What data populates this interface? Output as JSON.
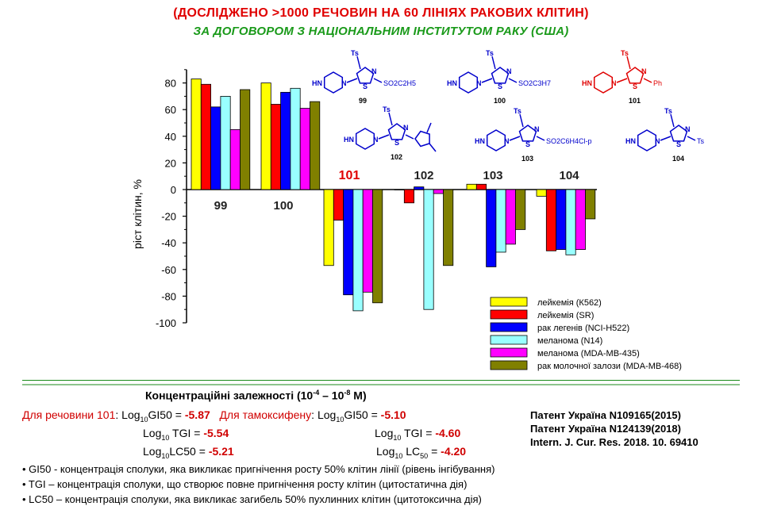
{
  "header": {
    "line1": "(ДОСЛІДЖЕНО  >1000  РЕЧОВИН  НА  60  ЛІНІЯХ  РАКОВИХ  КЛІТИН)",
    "line2": "ЗА ДОГОВОРОМ  З НАЦІОНАЛЬНИМ  ІНСТИТУТОМ РАКУ (США)"
  },
  "chart_data": {
    "type": "bar",
    "ylabel": "ріст клітин, %",
    "ylim": [
      -100,
      90
    ],
    "yticks": [
      80,
      60,
      40,
      20,
      0,
      -20,
      -40,
      -60,
      -80,
      -100
    ],
    "categories": [
      "99",
      "100",
      "101",
      "102",
      "103",
      "104"
    ],
    "highlight_category": "101",
    "series": [
      {
        "name": "лейкемія (К562)",
        "color": "#ffff00",
        "values": [
          83,
          80,
          -57,
          0,
          4,
          -5
        ]
      },
      {
        "name": "лейкемія (SR)",
        "color": "#ff0000",
        "values": [
          79,
          64,
          -23,
          -10,
          4,
          -46
        ]
      },
      {
        "name": "рак легенів (NCI-H522)",
        "color": "#0000ff",
        "values": [
          62,
          73,
          -79,
          2,
          -58,
          -45
        ]
      },
      {
        "name": "меланома (N14)",
        "color": "#99ffff",
        "values": [
          70,
          76,
          -91,
          -90,
          -47,
          -49
        ]
      },
      {
        "name": "меланома (MDA-MB-435)",
        "color": "#ff00ff",
        "values": [
          45,
          61,
          -77,
          -3,
          -41,
          -45
        ]
      },
      {
        "name": "рак молочної залози (MDA-MB-468)",
        "color": "#808000",
        "values": [
          75,
          66,
          -85,
          -57,
          -30,
          -22
        ]
      }
    ]
  },
  "molecules": [
    {
      "num": "99",
      "sub": "SO2C2H5"
    },
    {
      "num": "100",
      "sub": "SO2C3H7"
    },
    {
      "num": "101",
      "sub": "Ph"
    },
    {
      "num": "102",
      "sub": ""
    },
    {
      "num": "103",
      "sub": "SO2C6H4Cl-p"
    },
    {
      "num": "104",
      "sub": "Ts"
    }
  ],
  "mol_labels": {
    "ts": "Ts",
    "n": "N",
    "s": "S",
    "hn": "HN"
  },
  "concentration": {
    "heading": "Концентраційні залежності (10",
    "heading_exp1": "-4",
    "heading_mid": " – 10",
    "heading_exp2": "-8",
    "heading_end": " М)",
    "sub_label": "Для речовини 101",
    "tam_label": "Для тамоксифену",
    "log": "Log",
    "ten": "10",
    "gi50": "GI50",
    "tgi": "TGI",
    "lc50": "LC50",
    "sub_gi50": "-5.87",
    "sub_tgi": "-5.54",
    "sub_lc50": "-5.21",
    "tam_gi50": "-5.10",
    "tam_tgi": "-4.60",
    "tam_lc50": "-4.20",
    "lc_sub": "50"
  },
  "patents": [
    "Патент Україна N109165(2015)",
    "Патент Україна N124139(2018)",
    "Intern. J. Cur. Res. 2018. 10. 69410"
  ],
  "notes": [
    "• GI50 -  концентрація сполуки, яка викликає  пригнічення росту 50% клітин  лінії  (рівень інгібування)",
    "• TGI – концентрація сполуки, що  створює повне пригнічення  росту клітин  (цитостатична  дія)",
    "• LC50 – концентрація сполуки,  яка викликає  загибель 50% пухлинних  клітин  (цитотоксична  дія)"
  ]
}
